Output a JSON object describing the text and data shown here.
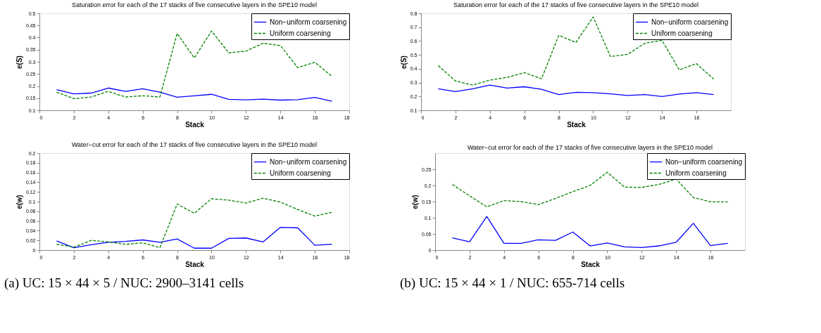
{
  "chart_data": [
    {
      "type": "line",
      "title": "Saturation error for each of the 17 stacks of five consecutive layers in the SPE10 model",
      "xlabel": "Stack",
      "ylabel": "e(S)",
      "x": [
        1,
        2,
        3,
        4,
        5,
        6,
        7,
        8,
        9,
        10,
        11,
        12,
        13,
        14,
        15,
        16,
        17
      ],
      "xlim": [
        0,
        18
      ],
      "xticks": [
        0,
        2,
        4,
        6,
        8,
        10,
        12,
        14,
        16,
        18
      ],
      "ylim": [
        0.1,
        0.5
      ],
      "yticks": [
        0.1,
        0.15,
        0.2,
        0.25,
        0.3,
        0.35,
        0.4,
        0.45,
        0.5
      ],
      "grid": false,
      "legend": "top right",
      "series": [
        {
          "name": "Non−uniform coarsening",
          "color": "#0000ff",
          "line_style": "solid",
          "values": [
            0.185,
            0.168,
            0.171,
            0.192,
            0.178,
            0.189,
            0.175,
            0.154,
            0.16,
            0.166,
            0.145,
            0.143,
            0.146,
            0.142,
            0.144,
            0.153,
            0.137
          ]
        },
        {
          "name": "Uniform coarsening",
          "color": "#008000",
          "line_style": "dashed",
          "values": [
            0.175,
            0.148,
            0.155,
            0.178,
            0.155,
            0.16,
            0.155,
            0.417,
            0.316,
            0.427,
            0.337,
            0.344,
            0.377,
            0.367,
            0.276,
            0.298,
            0.24
          ]
        }
      ]
    },
    {
      "type": "line",
      "title": "Saturation error for each of the 17 stacks of five consecutive layers in the SPE10 model",
      "xlabel": "Stack",
      "ylabel": "e(S)",
      "x": [
        1,
        2,
        3,
        4,
        5,
        6,
        7,
        8,
        9,
        10,
        11,
        12,
        13,
        14,
        15,
        16,
        17
      ],
      "xlim": [
        0,
        18
      ],
      "xticks": [
        0,
        2,
        4,
        6,
        8,
        10,
        12,
        14,
        16
      ],
      "ylim": [
        0.1,
        0.8
      ],
      "yticks": [
        0.1,
        0.2,
        0.3,
        0.4,
        0.5,
        0.6,
        0.7,
        0.8
      ],
      "grid": false,
      "legend": "top right",
      "series": [
        {
          "name": "Non−uniform coarsening",
          "color": "#0000ff",
          "line_style": "solid",
          "values": [
            0.255,
            0.235,
            0.255,
            0.282,
            0.26,
            0.27,
            0.252,
            0.214,
            0.23,
            0.227,
            0.219,
            0.207,
            0.214,
            0.2,
            0.217,
            0.227,
            0.214
          ]
        },
        {
          "name": "Uniform coarsening",
          "color": "#008000",
          "line_style": "dashed",
          "values": [
            0.422,
            0.312,
            0.282,
            0.318,
            0.338,
            0.372,
            0.328,
            0.641,
            0.59,
            0.774,
            0.488,
            0.504,
            0.584,
            0.605,
            0.392,
            0.437,
            0.325
          ]
        }
      ]
    },
    {
      "type": "line",
      "title": "Water−cut error for each of the 17 stacks of five consecutive layers in the SPE10 model",
      "xlabel": "Stack",
      "ylabel": "e(w)",
      "x": [
        1,
        2,
        3,
        4,
        5,
        6,
        7,
        8,
        9,
        10,
        11,
        12,
        13,
        14,
        15,
        16,
        17
      ],
      "xlim": [
        0,
        18
      ],
      "xticks": [
        0,
        2,
        4,
        6,
        8,
        10,
        12,
        14,
        16,
        18
      ],
      "ylim": [
        0,
        0.2
      ],
      "yticks": [
        0,
        0.02,
        0.04,
        0.06,
        0.08,
        0.1,
        0.12,
        0.14,
        0.16,
        0.18,
        0.2
      ],
      "grid": false,
      "legend": "top right",
      "annotations": [
        "(a) UC: 15 × 44 × 5 / NUC: 2900–3141 cells"
      ],
      "series": [
        {
          "name": "Non−uniform coarsening",
          "color": "#0000ff",
          "line_style": "solid",
          "values": [
            0.019,
            0.005,
            0.011,
            0.016,
            0.018,
            0.021,
            0.016,
            0.023,
            0.004,
            0.004,
            0.024,
            0.025,
            0.017,
            0.047,
            0.046,
            0.01,
            0.012
          ]
        },
        {
          "name": "Uniform coarsening",
          "color": "#008000",
          "line_style": "dashed",
          "values": [
            0.012,
            0.006,
            0.02,
            0.017,
            0.012,
            0.015,
            0.005,
            0.095,
            0.076,
            0.106,
            0.103,
            0.097,
            0.107,
            0.099,
            0.084,
            0.07,
            0.078
          ]
        }
      ]
    },
    {
      "type": "line",
      "title": "Water−cut error for each of the 17 stacks of five consecutive layers in the SPE10 model",
      "xlabel": "Stack",
      "ylabel": "e(w)",
      "x": [
        1,
        2,
        3,
        4,
        5,
        6,
        7,
        8,
        9,
        10,
        11,
        12,
        13,
        14,
        15,
        16,
        17
      ],
      "xlim": [
        0,
        18
      ],
      "xticks": [
        0,
        2,
        4,
        6,
        8,
        10,
        12,
        14,
        16
      ],
      "ylim": [
        0,
        0.3
      ],
      "yticks": [
        0,
        0.05,
        0.1,
        0.15,
        0.2,
        0.25
      ],
      "grid": false,
      "legend": "top right",
      "annotations": [
        "(b) UC: 15 × 44 × 1 / NUC: 655-714 cells"
      ],
      "series": [
        {
          "name": "Non−uniform coarsening",
          "color": "#0000ff",
          "line_style": "solid",
          "values": [
            0.038,
            0.026,
            0.104,
            0.021,
            0.021,
            0.032,
            0.03,
            0.056,
            0.013,
            0.022,
            0.01,
            0.008,
            0.013,
            0.024,
            0.083,
            0.014,
            0.021
          ]
        },
        {
          "name": "Uniform coarsening",
          "color": "#008000",
          "line_style": "dashed",
          "values": [
            0.203,
            0.168,
            0.134,
            0.153,
            0.15,
            0.141,
            0.16,
            0.181,
            0.2,
            0.241,
            0.195,
            0.194,
            0.203,
            0.22,
            0.163,
            0.149,
            0.149
          ]
        }
      ]
    }
  ]
}
